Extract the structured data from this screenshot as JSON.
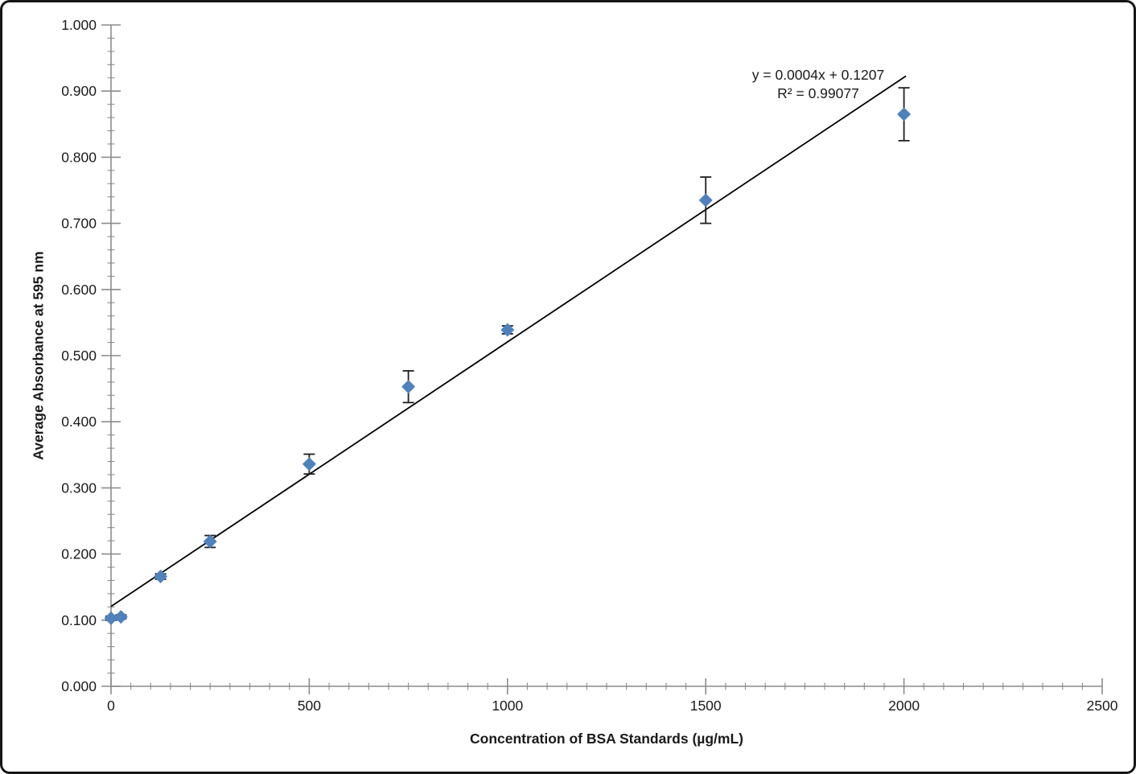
{
  "chart_data": {
    "type": "scatter",
    "title": "",
    "xlabel": "Concentration of BSA Standards (µg/mL)",
    "ylabel": "Average Absorbance at 595 nm",
    "xlim": [
      0,
      2500
    ],
    "ylim": [
      0.0,
      1.0
    ],
    "x_major_tick_interval": 500,
    "x_minor_tick_interval": 50,
    "y_major_tick_interval": 0.1,
    "y_minor_tick_interval": 0.02,
    "x_tick_labels": [
      "0",
      "500",
      "1000",
      "1500",
      "2000",
      "2500"
    ],
    "y_tick_labels": [
      "0.000",
      "0.100",
      "0.200",
      "0.300",
      "0.400",
      "0.500",
      "0.600",
      "0.700",
      "0.800",
      "0.900",
      "1.000"
    ],
    "grid": false,
    "legend": "none",
    "marker": "diamond",
    "marker_color": "#4F81BD",
    "error_bar_color": "#1f1f1f",
    "trendline_color": "#000000",
    "axis_color": "#8c8c8c",
    "text_color": "#1a1a1a",
    "points": [
      {
        "x": 0,
        "y": 0.103,
        "y_err": 0.003
      },
      {
        "x": 25,
        "y": 0.105,
        "y_err": 0.003
      },
      {
        "x": 125,
        "y": 0.166,
        "y_err": 0.004
      },
      {
        "x": 250,
        "y": 0.219,
        "y_err": 0.009
      },
      {
        "x": 500,
        "y": 0.336,
        "y_err": 0.015
      },
      {
        "x": 750,
        "y": 0.453,
        "y_err": 0.024
      },
      {
        "x": 1000,
        "y": 0.539,
        "y_err": 0.006
      },
      {
        "x": 1500,
        "y": 0.735,
        "y_err": 0.035
      },
      {
        "x": 2000,
        "y": 0.865,
        "y_err": 0.04
      }
    ],
    "trendline": {
      "slope": 0.0004,
      "intercept": 0.1207,
      "x_start": 0,
      "x_end": 2005,
      "equation_label": "y = 0.0004x + 0.1207",
      "r_squared_label": "R² = 0.99077"
    }
  }
}
